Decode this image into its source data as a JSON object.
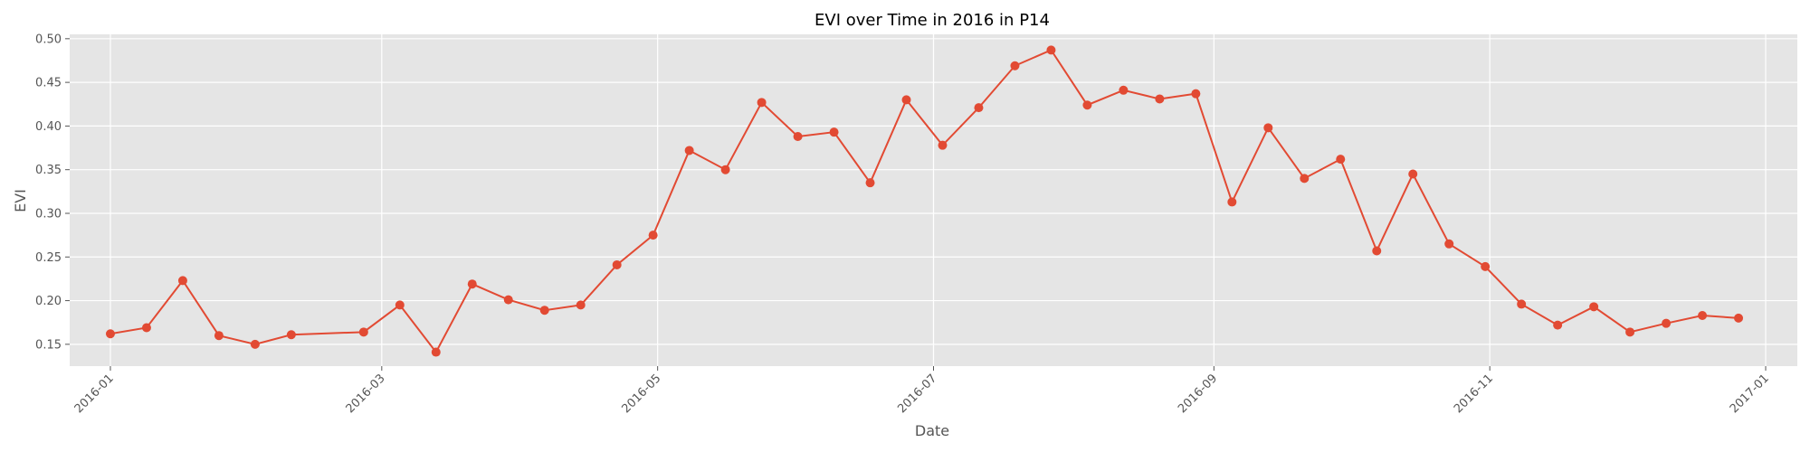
{
  "chart_data": {
    "type": "line",
    "title": "EVI over Time in 2016 in P14",
    "xlabel": "Date",
    "ylabel": "EVI",
    "x_axis_kind": "date",
    "xlim": [
      "2015-12-23",
      "2017-01-08"
    ],
    "ylim": [
      0.125,
      0.505
    ],
    "x_ticks": [
      "2016-01-01",
      "2016-03-01",
      "2016-05-01",
      "2016-07-01",
      "2016-09-01",
      "2016-11-01",
      "2017-01-01"
    ],
    "x_tick_labels": [
      "2016-01",
      "2016-03",
      "2016-05",
      "2016-07",
      "2016-09",
      "2016-11",
      "2017-01"
    ],
    "y_ticks": [
      0.15,
      0.2,
      0.25,
      0.3,
      0.35,
      0.4,
      0.45,
      0.5
    ],
    "y_tick_labels": [
      "0.15",
      "0.20",
      "0.25",
      "0.30",
      "0.35",
      "0.40",
      "0.45",
      "0.50"
    ],
    "grid": true,
    "legend": false,
    "colors": {
      "background": "#E5E5E5",
      "grid": "#FFFFFF",
      "line": "#E24A33"
    },
    "series": [
      {
        "x": [
          "2016-01-01",
          "2016-01-09",
          "2016-01-17",
          "2016-01-25",
          "2016-02-02",
          "2016-02-10",
          "2016-02-26",
          "2016-03-05",
          "2016-03-13",
          "2016-03-21",
          "2016-03-29",
          "2016-04-06",
          "2016-04-14",
          "2016-04-22",
          "2016-04-30",
          "2016-05-08",
          "2016-05-16",
          "2016-05-24",
          "2016-06-01",
          "2016-06-09",
          "2016-06-17",
          "2016-06-25",
          "2016-07-03",
          "2016-07-11",
          "2016-07-19",
          "2016-07-27",
          "2016-08-04",
          "2016-08-12",
          "2016-08-20",
          "2016-08-28",
          "2016-09-05",
          "2016-09-13",
          "2016-09-21",
          "2016-09-29",
          "2016-10-07",
          "2016-10-15",
          "2016-10-23",
          "2016-10-31",
          "2016-11-08",
          "2016-11-16",
          "2016-11-24",
          "2016-12-02",
          "2016-12-10",
          "2016-12-18",
          "2016-12-26"
        ],
        "y": [
          0.162,
          0.169,
          0.223,
          0.16,
          0.15,
          0.161,
          0.164,
          0.195,
          0.141,
          0.219,
          0.201,
          0.189,
          0.195,
          0.241,
          0.275,
          0.372,
          0.35,
          0.427,
          0.388,
          0.393,
          0.335,
          0.43,
          0.378,
          0.421,
          0.469,
          0.487,
          0.424,
          0.441,
          0.431,
          0.437,
          0.313,
          0.398,
          0.34,
          0.362,
          0.257,
          0.345,
          0.265,
          0.239,
          0.196,
          0.172,
          0.193,
          0.164,
          0.174,
          0.183,
          0.18
        ]
      }
    ]
  }
}
